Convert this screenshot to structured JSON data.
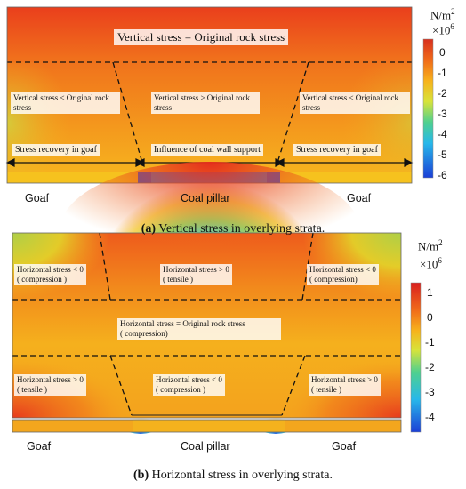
{
  "panel_a": {
    "title_label": "Vertical stress = Original rock stress",
    "zone_left": "Vertical stress < Original rock stress",
    "zone_center": "Vertical stress > Original rock stress",
    "zone_right": "Vertical stress < Original rock stress",
    "arrow_left": "Stress recovery in goaf",
    "arrow_center": "Influence of coal wall support",
    "arrow_right": "Stress recovery in goaf",
    "below_left": "Goaf",
    "below_center": "Coal pillar",
    "below_right": "Goaf",
    "caption_tag": "(a)",
    "caption_text": " Vertical stress in overlying strata.",
    "colorbar_unit": "N/m",
    "colorbar_unit_sup": "2",
    "colorbar_scale": "×10",
    "colorbar_scale_sup": "6",
    "colorbar_ticks": [
      "0",
      "-1",
      "-2",
      "-3",
      "-4",
      "-5",
      "-6"
    ]
  },
  "panel_b": {
    "zone_tl_1": "Horizontal stress < 0",
    "zone_tl_2": "( compression )",
    "zone_tc_1": "Horizontal stress > 0",
    "zone_tc_2": "( tensile )",
    "zone_tr_1": "Horizontal stress < 0",
    "zone_tr_2": "( compression)",
    "zone_mid_1": "Horizontal stress = Original rock stress",
    "zone_mid_2": "( compression)",
    "zone_bl_1": "Horizontal stress > 0",
    "zone_bl_2": "( tensile )",
    "zone_bc_1": "Horizontal stress < 0",
    "zone_bc_2": "( compression )",
    "zone_br_1": "Horizontal stress > 0",
    "zone_br_2": "( tensile )",
    "below_left": "Goaf",
    "below_center": "Coal pillar",
    "below_right": "Goaf",
    "caption_tag": "(b)",
    "caption_text": " Horizontal stress in overlying strata.",
    "colorbar_unit": "N/m",
    "colorbar_unit_sup": "2",
    "colorbar_scale": "×10",
    "colorbar_scale_sup": "6",
    "colorbar_ticks": [
      "1",
      "0",
      "-1",
      "-2",
      "-3",
      "-4"
    ]
  },
  "colors": {
    "red": "#e8321e",
    "orange": "#f27a1c",
    "yellow": "#f7c21c",
    "green": "#7dcf4a",
    "cyan": "#35c6e6",
    "blue": "#1b4fe0"
  }
}
